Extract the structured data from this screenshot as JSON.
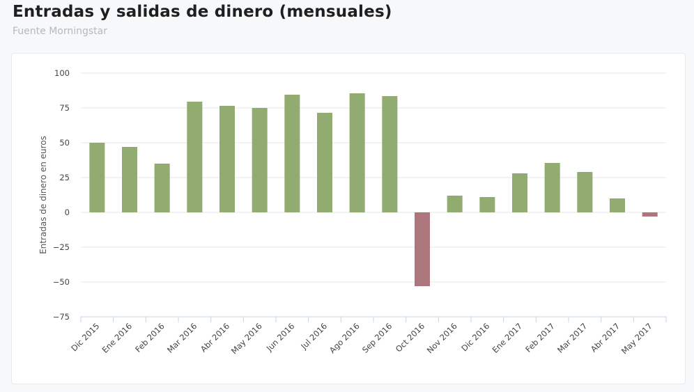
{
  "header": {
    "title": "Entradas y salidas de dinero (mensuales)",
    "subtitle": "Fuente Morningstar"
  },
  "colors": {
    "positive": "#92ab70",
    "negative": "#ad767c",
    "grid": "#e6e6e6",
    "axis": "#c8d4e3"
  },
  "chart_data": {
    "type": "bar",
    "title": "Entradas y salidas de dinero (mensuales)",
    "subtitle": "Fuente Morningstar",
    "xlabel": "",
    "ylabel": "Entradas de dinero en euros",
    "ylim": [
      -75,
      100
    ],
    "yticks": [
      100,
      75,
      50,
      25,
      0,
      -25,
      -50,
      -75
    ],
    "ytick_labels": [
      "100",
      "75",
      "50",
      "25",
      "0",
      "−25",
      "−50",
      "−75"
    ],
    "grid": true,
    "legend": "none",
    "categories": [
      "Dic 2015",
      "Ene 2016",
      "Feb 2016",
      "Mar 2016",
      "Abr 2016",
      "May 2016",
      "Jun 2016",
      "Jul 2016",
      "Ago 2016",
      "Sep 2016",
      "Oct 2016",
      "Nov 2016",
      "Dic 2016",
      "Ene 2017",
      "Feb 2017",
      "Mar 2017",
      "Abr 2017",
      "May 2017"
    ],
    "values": [
      50,
      47,
      35,
      79.5,
      76.5,
      75,
      84.5,
      71.5,
      85.5,
      83.5,
      -53,
      12,
      11,
      28,
      35.5,
      29,
      10,
      -3
    ]
  }
}
